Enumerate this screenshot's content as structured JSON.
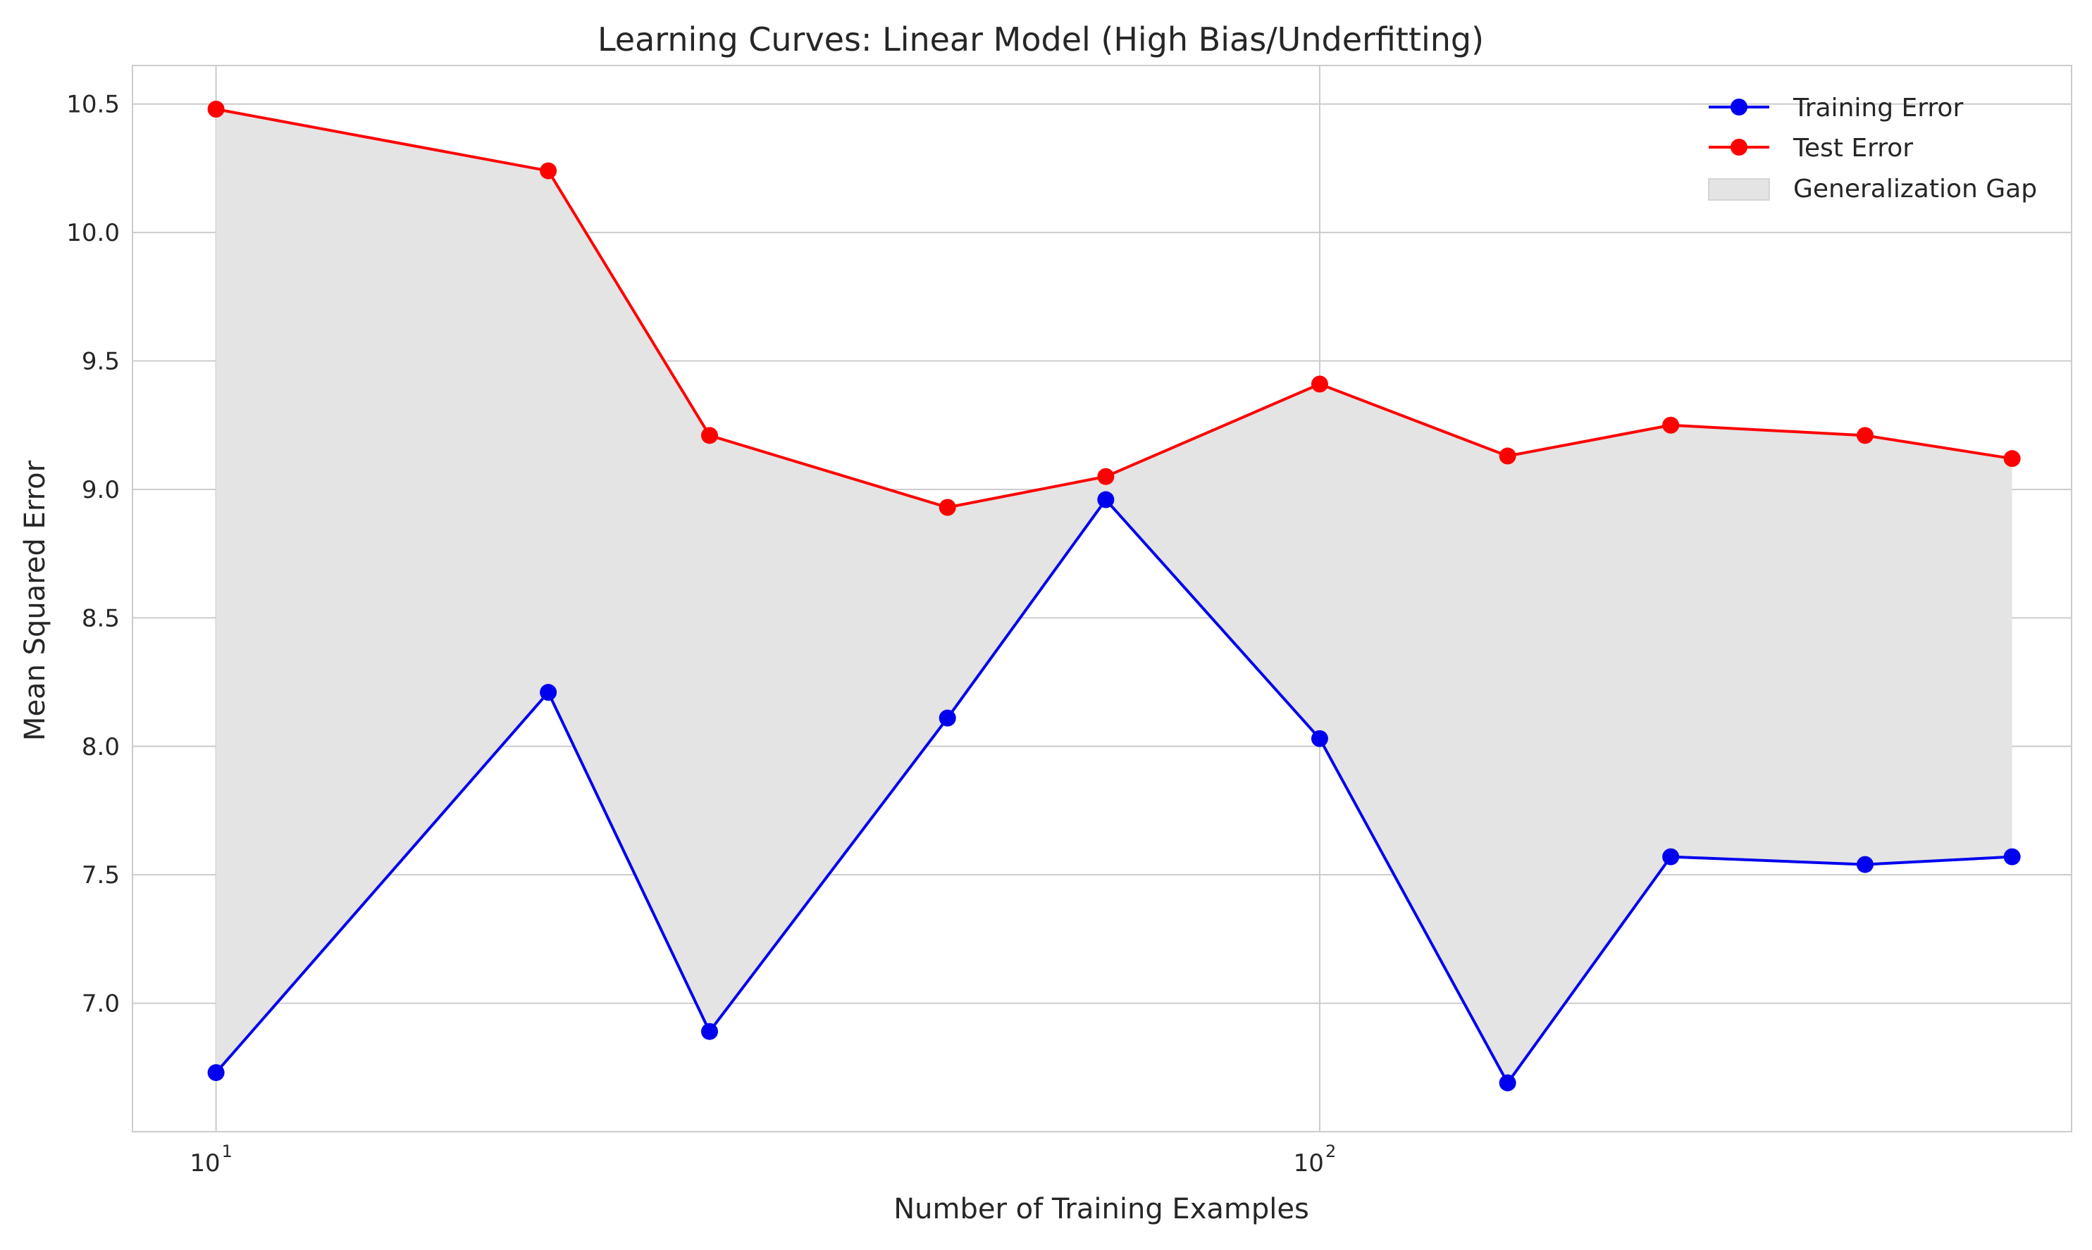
{
  "chart_data": {
    "type": "line",
    "title": "Learning Curves: Linear Model (High Bias/Underfitting)",
    "xlabel": "Number of Training Examples",
    "ylabel": "Mean Squared Error",
    "xscale": "log",
    "xlim": [
      8.4,
      480
    ],
    "ylim": [
      6.5,
      10.65
    ],
    "x": [
      10,
      20,
      28,
      46,
      64,
      100,
      148,
      208,
      312,
      424
    ],
    "series": [
      {
        "name": "Training Error",
        "color": "#0000ee",
        "values": [
          6.73,
          8.21,
          6.89,
          8.11,
          8.96,
          8.03,
          6.69,
          7.57,
          7.54,
          7.57
        ]
      },
      {
        "name": "Test Error",
        "color": "#ff0000",
        "values": [
          10.48,
          10.24,
          9.21,
          8.93,
          9.05,
          9.41,
          9.13,
          9.25,
          9.21,
          9.12
        ]
      }
    ],
    "fill_between": {
      "name": "Generalization Gap",
      "color": "#e4e4e4"
    },
    "yticks": [
      {
        "value": 7.0,
        "label": "7.0"
      },
      {
        "value": 7.5,
        "label": "7.5"
      },
      {
        "value": 8.0,
        "label": "8.0"
      },
      {
        "value": 8.5,
        "label": "8.5"
      },
      {
        "value": 9.0,
        "label": "9.0"
      },
      {
        "value": 9.5,
        "label": "9.5"
      },
      {
        "value": 10.0,
        "label": "10.0"
      },
      {
        "value": 10.5,
        "label": "10.5"
      }
    ],
    "xticks": [
      {
        "value": 10,
        "base": "10",
        "exp": "1"
      },
      {
        "value": 100,
        "base": "10",
        "exp": "2"
      }
    ],
    "grid": true,
    "legend_position": "top-right"
  }
}
